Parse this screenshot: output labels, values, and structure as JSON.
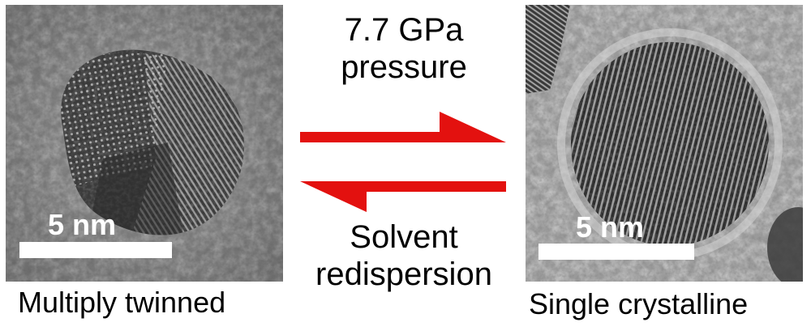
{
  "left_panel": {
    "scale_bar_label": "5 nm",
    "caption": "Multiply twinned"
  },
  "right_panel": {
    "scale_bar_label": "5 nm",
    "caption": "Single crystalline"
  },
  "forward": {
    "line1": "7.7 GPa",
    "line2": "pressure"
  },
  "reverse": {
    "line1": "Solvent",
    "line2": "redispersion"
  },
  "colors": {
    "arrow": "#e3110f",
    "scale_bar": "#ffffff"
  }
}
